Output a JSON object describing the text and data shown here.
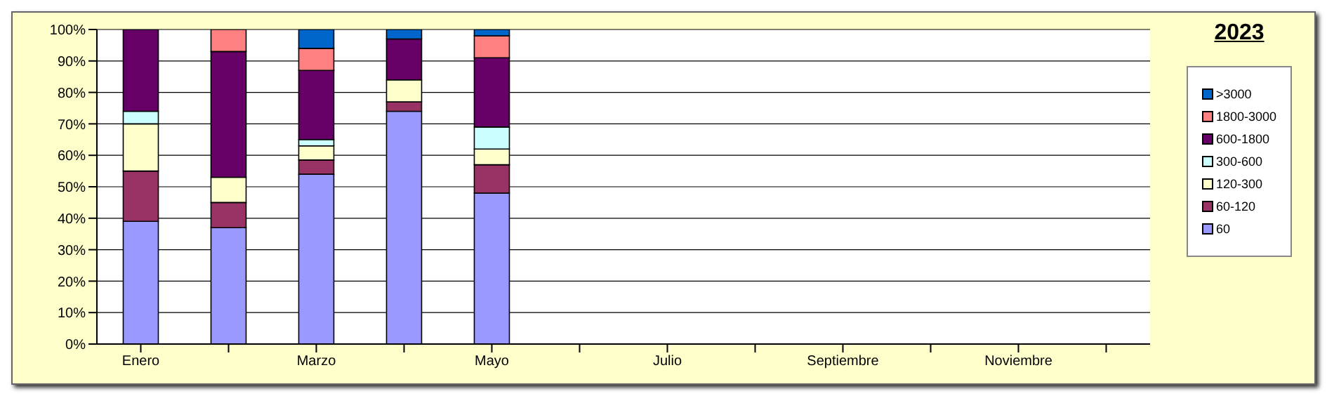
{
  "chart_data": {
    "type": "bar",
    "title": "2023",
    "stacked": true,
    "grid": "y",
    "legend": "right",
    "categories": [
      "Enero",
      null,
      "Marzo",
      null,
      "Mayo",
      null,
      "Julio",
      null,
      "Septiembre",
      null,
      "Noviembre",
      null
    ],
    "ylim": [
      0,
      100
    ],
    "yticks": [
      {
        "value": 0,
        "label": "0%"
      },
      {
        "value": 10,
        "label": "10%"
      },
      {
        "value": 20,
        "label": "20%"
      },
      {
        "value": 30,
        "label": "30%"
      },
      {
        "value": 40,
        "label": "40%"
      },
      {
        "value": 50,
        "label": "50%"
      },
      {
        "value": 60,
        "label": "60%"
      },
      {
        "value": 70,
        "label": "70%"
      },
      {
        "value": 80,
        "label": "80%"
      },
      {
        "value": 90,
        "label": "90%"
      },
      {
        "value": 100,
        "label": "100%"
      }
    ],
    "series": [
      {
        "name": "60",
        "color": "#9999ff",
        "values": [
          39,
          37,
          54,
          74,
          48,
          0,
          0,
          0,
          0,
          0,
          0,
          0
        ]
      },
      {
        "name": "60-120",
        "color": "#993366",
        "values": [
          16,
          8,
          4.5,
          3,
          9,
          0,
          0,
          0,
          0,
          0,
          0,
          0
        ]
      },
      {
        "name": "120-300",
        "color": "#ffffcc",
        "values": [
          15,
          8,
          4.5,
          7,
          5,
          0,
          0,
          0,
          0,
          0,
          0,
          0
        ]
      },
      {
        "name": "300-600",
        "color": "#ccffff",
        "values": [
          4,
          0,
          2,
          0,
          7,
          0,
          0,
          0,
          0,
          0,
          0,
          0
        ]
      },
      {
        "name": "600-1800",
        "color": "#660066",
        "values": [
          26,
          40,
          22,
          13,
          22,
          0,
          0,
          0,
          0,
          0,
          0,
          0
        ]
      },
      {
        "name": "1800-3000",
        "color": "#ff8080",
        "values": [
          0,
          7,
          7,
          0,
          7,
          0,
          0,
          0,
          0,
          0,
          0,
          0
        ]
      },
      {
        "name": ">3000",
        "color": "#0066cc",
        "values": [
          0,
          0,
          6,
          3,
          2,
          0,
          0,
          0,
          0,
          0,
          0,
          0
        ]
      }
    ]
  }
}
